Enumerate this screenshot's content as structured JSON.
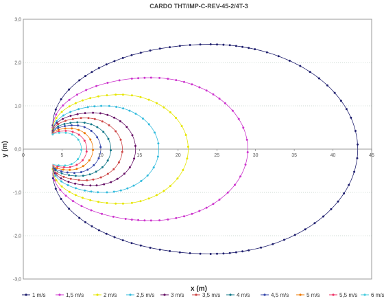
{
  "chart_data": {
    "type": "scatter",
    "title": "CARDO THT/IMP-C-REV-45-2/4T-3",
    "xlabel": "x (m)",
    "ylabel": "y (m)",
    "xlim": [
      0,
      45
    ],
    "ylim": [
      -3,
      3
    ],
    "x_ticks": [
      "0",
      "5",
      "10",
      "15",
      "20",
      "25",
      "30",
      "35",
      "40",
      "45"
    ],
    "y_ticks": [
      "-3,0",
      "-2,0",
      "-1,0",
      "0,0",
      "1,0",
      "2,0",
      "3,0"
    ],
    "grid": "horizontal dotted",
    "legend_position": "bottom",
    "point_spacing_m": 0.5,
    "series": [
      {
        "name": "1 m/s",
        "color": "#1f1f6e",
        "near_x": 3.8,
        "near_y": 0.55,
        "max_y": 2.42,
        "max_y_x": 24.2,
        "far_x": 43.2
      },
      {
        "name": "1,5 m/s",
        "color": "#cc33cc",
        "near_x": 3.8,
        "near_y": 0.5,
        "max_y": 1.65,
        "max_y_x": 16.5,
        "far_x": 29.0
      },
      {
        "name": "2 m/s",
        "color": "#e6e600",
        "near_x": 3.8,
        "near_y": 0.46,
        "max_y": 1.26,
        "max_y_x": 12.5,
        "far_x": 21.3
      },
      {
        "name": "2,5 m/s",
        "color": "#33bbdd",
        "near_x": 3.8,
        "near_y": 0.43,
        "max_y": 1.0,
        "max_y_x": 10.5,
        "far_x": 17.5
      },
      {
        "name": "3 m/s",
        "color": "#661166",
        "near_x": 3.8,
        "near_y": 0.42,
        "max_y": 0.84,
        "max_y_x": 9.0,
        "far_x": 14.5
      },
      {
        "name": "3,5 m/s",
        "color": "#cc4444",
        "near_x": 3.8,
        "near_y": 0.4,
        "max_y": 0.72,
        "max_y_x": 8.0,
        "far_x": 12.8
      },
      {
        "name": "4 m/s",
        "color": "#117788",
        "near_x": 3.8,
        "near_y": 0.38,
        "max_y": 0.62,
        "max_y_x": 7.2,
        "far_x": 11.3
      },
      {
        "name": "4,5 m/s",
        "color": "#3344aa",
        "near_x": 3.8,
        "near_y": 0.37,
        "max_y": 0.55,
        "max_y_x": 6.6,
        "far_x": 10.0
      },
      {
        "name": "5 m/s",
        "color": "#ee7700",
        "near_x": 3.8,
        "near_y": 0.36,
        "max_y": 0.48,
        "max_y_x": 6.0,
        "far_x": 9.0
      },
      {
        "name": "5,5 m/s",
        "color": "#ee3366",
        "near_x": 3.8,
        "near_y": 0.35,
        "max_y": 0.42,
        "max_y_x": 5.6,
        "far_x": 8.2
      },
      {
        "name": "6 m/s",
        "color": "#44ccdd",
        "near_x": 3.8,
        "near_y": 0.34,
        "max_y": 0.38,
        "max_y_x": 5.3,
        "far_x": 7.5
      }
    ]
  }
}
